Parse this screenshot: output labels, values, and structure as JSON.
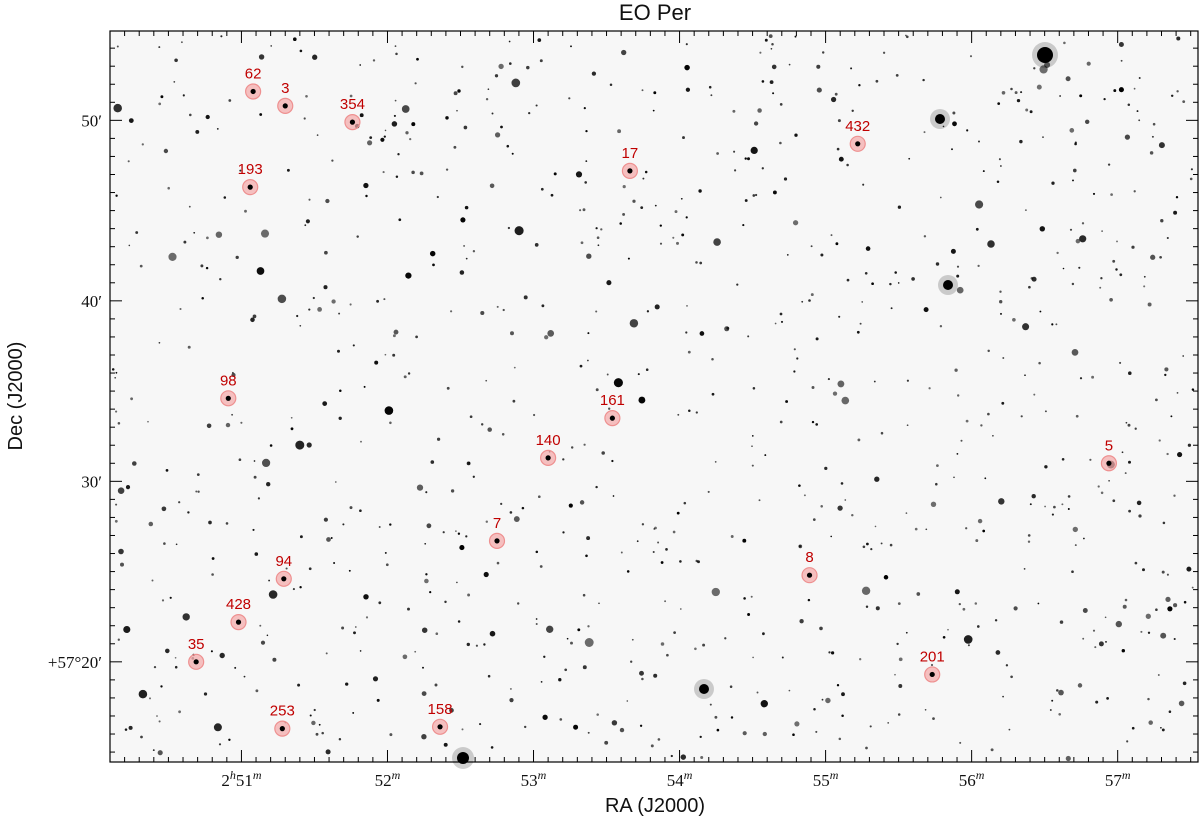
{
  "title": "EO Per",
  "x_axis": {
    "label": "RA (J2000)",
    "ticks": [
      {
        "value": 51,
        "hour": "2",
        "min": "51"
      },
      {
        "value": 52,
        "hour": "",
        "min": "52"
      },
      {
        "value": 53,
        "hour": "",
        "min": "53"
      },
      {
        "value": 54,
        "hour": "",
        "min": "54"
      },
      {
        "value": 55,
        "hour": "",
        "min": "55"
      },
      {
        "value": 56,
        "hour": "",
        "min": "56"
      },
      {
        "value": 57,
        "hour": "",
        "min": "57"
      }
    ],
    "range": [
      50.1,
      57.55
    ],
    "direction": "increasing-right"
  },
  "y_axis": {
    "label": "Dec (J2000)",
    "ticks": [
      {
        "value": 20,
        "text": "+57°20′"
      },
      {
        "value": 30,
        "text": "30′"
      },
      {
        "value": 40,
        "text": "40′"
      },
      {
        "value": 50,
        "text": "50′"
      }
    ],
    "range": [
      14.45,
      54.95
    ]
  },
  "labeled_stars": [
    {
      "label": "62",
      "ra": 51.08,
      "dec": 51.6
    },
    {
      "label": "3",
      "ra": 51.3,
      "dec": 50.8
    },
    {
      "label": "354",
      "ra": 51.76,
      "dec": 49.9
    },
    {
      "label": "193",
      "ra": 51.06,
      "dec": 46.3
    },
    {
      "label": "17",
      "ra": 53.66,
      "dec": 47.2
    },
    {
      "label": "432",
      "ra": 55.22,
      "dec": 48.7
    },
    {
      "label": "98",
      "ra": 50.91,
      "dec": 34.6
    },
    {
      "label": "161",
      "ra": 53.54,
      "dec": 33.5
    },
    {
      "label": "140",
      "ra": 53.1,
      "dec": 31.3
    },
    {
      "label": "5",
      "ra": 56.94,
      "dec": 31.0
    },
    {
      "label": "7",
      "ra": 52.75,
      "dec": 26.7
    },
    {
      "label": "8",
      "ra": 54.89,
      "dec": 24.8
    },
    {
      "label": "94",
      "ra": 51.29,
      "dec": 24.6
    },
    {
      "label": "428",
      "ra": 50.98,
      "dec": 22.2
    },
    {
      "label": "35",
      "ra": 50.69,
      "dec": 20.0
    },
    {
      "label": "201",
      "ra": 55.73,
      "dec": 19.3
    },
    {
      "label": "253",
      "ra": 51.28,
      "dec": 16.3
    },
    {
      "label": "158",
      "ra": 52.36,
      "dec": 16.4
    }
  ],
  "colors": {
    "marker_fill": "#f4a6a6",
    "marker_stroke": "#ee9090",
    "label": "#c00000",
    "background": "#f7f7f7",
    "stars": "#000000"
  },
  "image": "inverted-grayscale-star-field"
}
